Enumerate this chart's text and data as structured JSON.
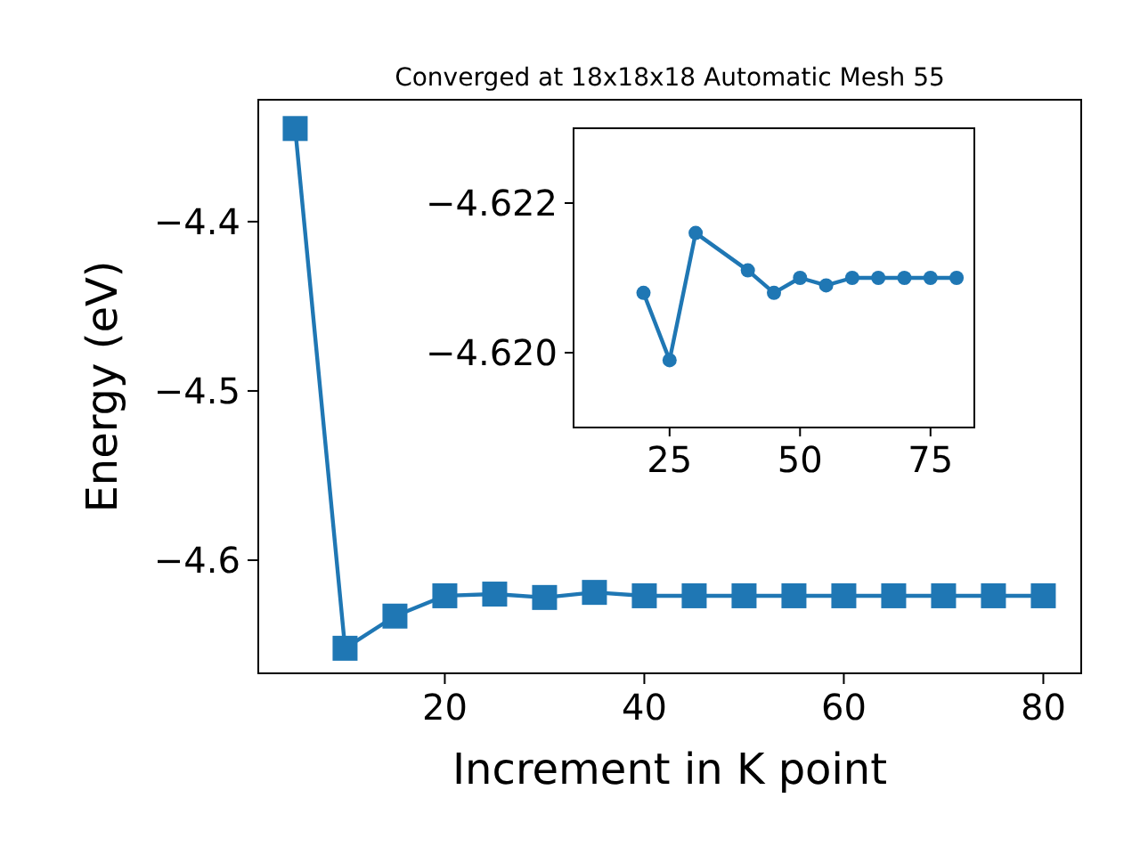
{
  "chart_data": [
    {
      "type": "line",
      "title": "Converged at 18x18x18 Automatic Mesh 55",
      "xlabel": "Increment in K point",
      "ylabel": "Energy (eV)",
      "marker": "square",
      "line_style": "solid",
      "grid": false,
      "xlim": [
        1.3,
        83.8
      ],
      "ylim": [
        -4.6668,
        -4.328
      ],
      "xticks": [
        20,
        40,
        60,
        80
      ],
      "yticks": [
        {
          "value": -4.6,
          "label": "−4.6"
        },
        {
          "value": -4.5,
          "label": "−4.5"
        },
        {
          "value": -4.4,
          "label": "−4.4"
        }
      ],
      "series": [
        {
          "color": "#1f77b4",
          "x": [
            5,
            10,
            15,
            20,
            25,
            30,
            35,
            40,
            45,
            50,
            55,
            60,
            65,
            70,
            75,
            80
          ],
          "values": [
            -4.345,
            -4.652,
            -4.633,
            -4.621,
            -4.62,
            -4.622,
            -4.619,
            -4.621,
            -4.621,
            -4.621,
            -4.621,
            -4.621,
            -4.621,
            -4.621,
            -4.621,
            -4.621
          ]
        }
      ]
    },
    {
      "type": "line",
      "marker": "circle",
      "line_style": "solid",
      "grid": false,
      "xlim": [
        6.6,
        83.4
      ],
      "ylim": [
        -4.619,
        -4.623
      ],
      "xticks": [
        25,
        50,
        75
      ],
      "yticks": [
        {
          "value": -4.622,
          "label": "−4.622"
        },
        {
          "value": -4.62,
          "label": "−4.620"
        }
      ],
      "series": [
        {
          "color": "#1f77b4",
          "x": [
            20,
            25,
            30,
            40,
            45,
            50,
            55,
            60,
            65,
            70,
            75,
            80
          ],
          "values": [
            -4.6208,
            -4.6199,
            -4.6216,
            -4.6211,
            -4.6208,
            -4.621,
            -4.6209,
            -4.621,
            -4.621,
            -4.621,
            -4.621,
            -4.621
          ]
        }
      ]
    }
  ]
}
